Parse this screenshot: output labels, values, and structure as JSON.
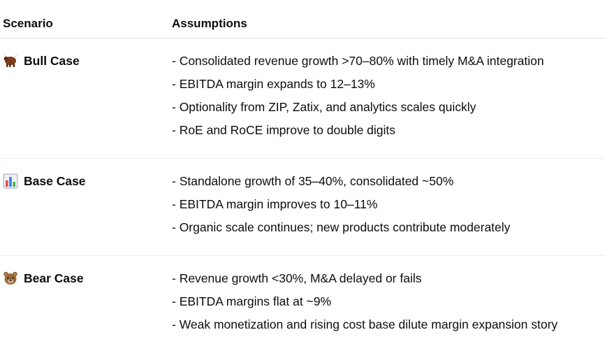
{
  "table": {
    "headers": {
      "scenario": "Scenario",
      "assumptions": "Assumptions"
    },
    "rows": [
      {
        "icon": "bull-icon",
        "scenario": "Bull Case",
        "assumptions": [
          "- Consolidated revenue growth >70–80% with timely M&A integration",
          "- EBITDA margin expands to 12–13%",
          "- Optionality from ZIP, Zatix, and analytics scales quickly",
          "- RoE and RoCE improve to double digits"
        ]
      },
      {
        "icon": "bar-chart-icon",
        "scenario": "Base Case",
        "assumptions": [
          "- Standalone growth of 35–40%, consolidated ~50%",
          "- EBITDA margin improves to 10–11%",
          "- Organic scale continues; new products contribute moderately"
        ]
      },
      {
        "icon": "bear-icon",
        "scenario": "Bear Case",
        "assumptions": [
          "- Revenue growth <30%, M&A delayed or fails",
          "- EBITDA margins flat at ~9%",
          "- Weak monetization and rising cost base dilute margin expansion story"
        ]
      }
    ]
  }
}
